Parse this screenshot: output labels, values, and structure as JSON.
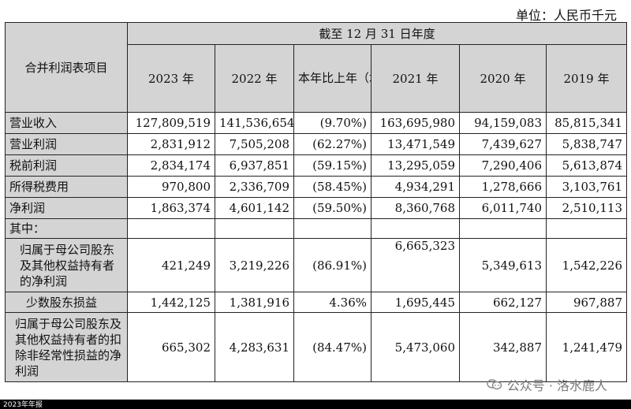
{
  "unit_label": "单位：人民币千元",
  "header": {
    "row_header": "合并利润表项目",
    "period_header": "截至 12 月 31 日年度",
    "columns": [
      "2023 年",
      "2022 年",
      "本年比上年（增减）",
      "2021 年",
      "2020 年",
      "2019 年"
    ]
  },
  "rows": [
    {
      "label": "营业收入",
      "values": [
        "127,809,519",
        "141,536,654",
        "(9.70%)",
        "163,695,980",
        "94,159,083",
        "85,815,341"
      ]
    },
    {
      "label": "营业利润",
      "values": [
        "2,831,912",
        "7,505,208",
        "(62.27%)",
        "13,471,549",
        "7,439,627",
        "5,838,747"
      ]
    },
    {
      "label": "税前利润",
      "values": [
        "2,834,174",
        "6,937,851",
        "(59.15%)",
        "13,295,059",
        "7,290,406",
        "5,613,874"
      ]
    },
    {
      "label": "所得税费用",
      "values": [
        "970,800",
        "2,336,709",
        "(58.45%)",
        "4,934,291",
        "1,278,666",
        "3,103,761"
      ]
    },
    {
      "label": "净利润",
      "values": [
        "1,863,374",
        "4,601,142",
        "(59.50%)",
        "8,360,768",
        "6,011,740",
        "2,510,113"
      ]
    },
    {
      "label": "其中：",
      "values": [
        "",
        "",
        "",
        "",
        "",
        ""
      ]
    },
    {
      "label": "归属于母公司股东及其他权益持有者的净利润",
      "values": [
        "421,249",
        "3,219,226",
        "(86.91%)",
        "6,665,323",
        "5,349,613",
        "1,542,226"
      ]
    },
    {
      "label": "少数股东损益",
      "values": [
        "1,442,125",
        "1,381,916",
        "4.36%",
        "1,695,445",
        "662,127",
        "967,887"
      ]
    },
    {
      "label": "归属于母公司股东及其他权益持有者的扣除非经常性损益的净利润",
      "values": [
        "665,302",
        "4,283,631",
        "(84.47%)",
        "5,473,060",
        "342,887",
        "1,241,479"
      ]
    }
  ],
  "watermark": "公众号 · 洛水鹿人",
  "footer_text": "2023年年报"
}
